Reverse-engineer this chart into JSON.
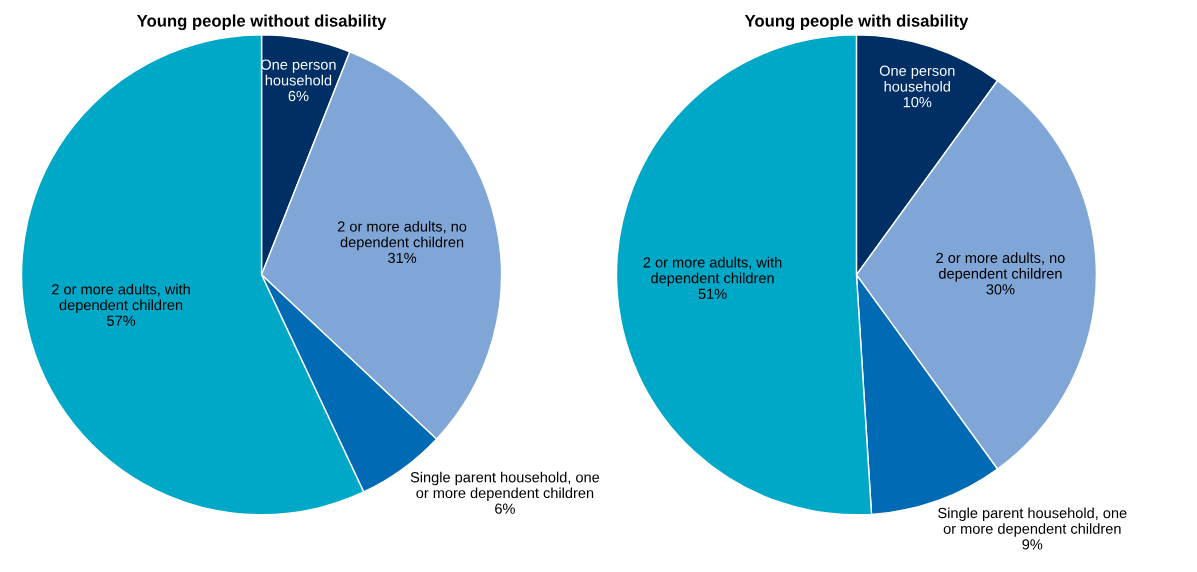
{
  "chart_data": [
    {
      "type": "pie",
      "title": "Young people without disability",
      "categories": [
        "One person\nhousehold",
        "2 or more adults, no\ndependent children",
        "Single parent household, one\nor more dependent children",
        "2 or more adults, with\ndependent children"
      ],
      "values": [
        6,
        31,
        6,
        57
      ],
      "value_labels": [
        "6%",
        "31%",
        "6%",
        "57%"
      ],
      "colors": [
        "#002f66",
        "#7fa6d7",
        "#006ab4",
        "#00a8c8"
      ]
    },
    {
      "type": "pie",
      "title": "Young people with disability",
      "categories": [
        "One person\nhousehold",
        "2 or more adults, no\ndependent children",
        "Single parent household, one\nor more dependent children",
        "2 or more adults, with\ndependent children"
      ],
      "values": [
        10,
        30,
        9,
        51
      ],
      "value_labels": [
        "10%",
        "30%",
        "9%",
        "51%"
      ],
      "colors": [
        "#002f66",
        "#7fa6d7",
        "#006ab4",
        "#00a8c8"
      ]
    }
  ]
}
